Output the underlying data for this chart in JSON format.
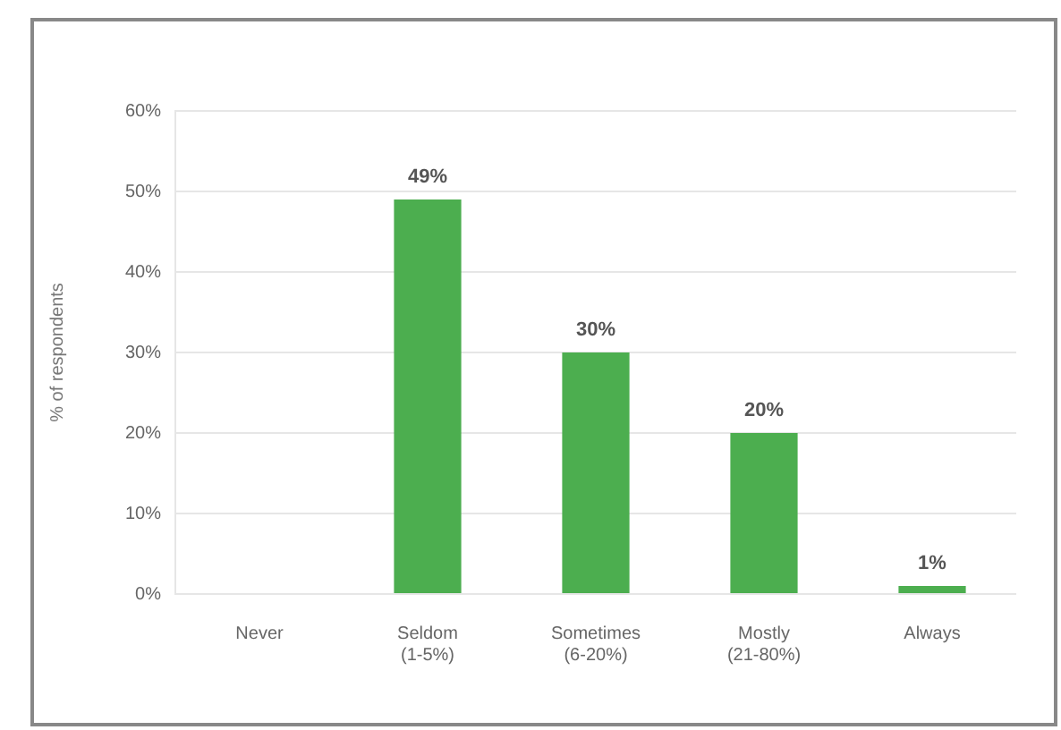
{
  "chart_data": {
    "type": "bar",
    "ylabel": "% of respondents",
    "categories": [
      "Never",
      "Seldom\n(1-5%)",
      "Sometimes\n(6-20%)",
      "Mostly\n(21-80%)",
      "Always"
    ],
    "values": [
      0,
      49,
      30,
      20,
      1
    ],
    "value_labels": [
      null,
      "49%",
      "30%",
      "20%",
      "1%"
    ],
    "color": "#4cae4f",
    "ylim": [
      0,
      60
    ],
    "yticks": [
      {
        "value": 0,
        "label": "0%"
      },
      {
        "value": 10,
        "label": "10%"
      },
      {
        "value": 20,
        "label": "20%"
      },
      {
        "value": 30,
        "label": "30%"
      },
      {
        "value": 40,
        "label": "40%"
      },
      {
        "value": 50,
        "label": "50%"
      },
      {
        "value": 60,
        "label": "60%"
      }
    ],
    "grid": "y"
  }
}
